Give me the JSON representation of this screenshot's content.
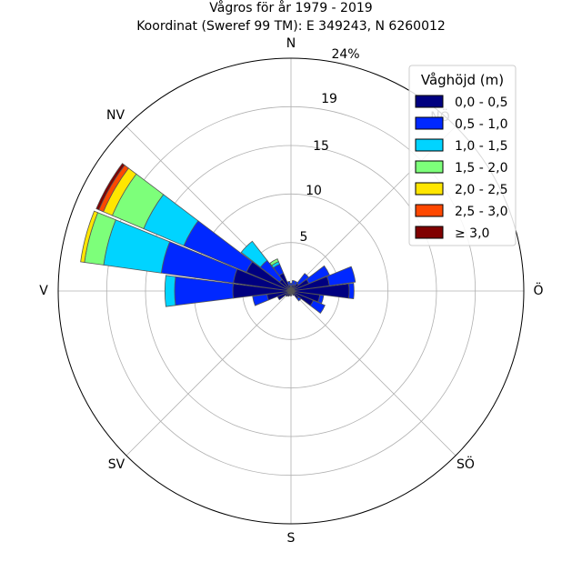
{
  "chart_data": {
    "type": "windrose",
    "title": "Vågros för år 1979 - 2019",
    "subtitle": "Koordinat (Sweref 99 TM): E 349243, N 6260012",
    "direction_labels": [
      "N",
      "NÖ",
      "Ö",
      "SÖ",
      "S",
      "SV",
      "V",
      "NV"
    ],
    "radial_ticks": [
      5,
      10,
      15,
      19
    ],
    "radial_max": 24,
    "radial_max_label": "24%",
    "sector_width_deg": 15,
    "legend": {
      "title": "Våghöjd (m)",
      "placement": "upper-right",
      "classes": [
        {
          "label": "0,0 - 0,5",
          "color": "#000080"
        },
        {
          "label": "0,5 - 1,0",
          "color": "#0028ff"
        },
        {
          "label": "1,0 - 1,5",
          "color": "#00d4ff"
        },
        {
          "label": "1,5 - 2,0",
          "color": "#7dff7a"
        },
        {
          "label": "2,0 - 2,5",
          "color": "#ffe600"
        },
        {
          "label": "2,5 - 3,0",
          "color": "#ff4800"
        },
        {
          "label": "≥ 3,0",
          "color": "#800000"
        }
      ]
    },
    "sectors": [
      {
        "direction_deg": 0,
        "values": [
          0.5,
          0.3,
          0,
          0,
          0,
          0,
          0
        ]
      },
      {
        "direction_deg": 15,
        "values": [
          0.6,
          0.5,
          0,
          0,
          0,
          0,
          0
        ]
      },
      {
        "direction_deg": 30,
        "values": [
          0.7,
          0.4,
          0,
          0,
          0,
          0,
          0
        ]
      },
      {
        "direction_deg": 45,
        "values": [
          1.0,
          1.3,
          0,
          0,
          0,
          0,
          0
        ]
      },
      {
        "direction_deg": 60,
        "values": [
          2.0,
          2.3,
          0,
          0,
          0,
          0,
          0
        ]
      },
      {
        "direction_deg": 75,
        "values": [
          4.0,
          2.7,
          0,
          0,
          0,
          0,
          0
        ]
      },
      {
        "direction_deg": 90,
        "values": [
          6.0,
          0.5,
          0,
          0,
          0,
          0,
          0
        ]
      },
      {
        "direction_deg": 105,
        "values": [
          3.0,
          0.4,
          0,
          0,
          0,
          0,
          0
        ]
      },
      {
        "direction_deg": 120,
        "values": [
          2.5,
          1.3,
          0,
          0,
          0,
          0,
          0
        ]
      },
      {
        "direction_deg": 135,
        "values": [
          1.0,
          0.3,
          0,
          0,
          0,
          0,
          0
        ]
      },
      {
        "direction_deg": 150,
        "values": [
          0.5,
          0,
          0,
          0,
          0,
          0,
          0
        ]
      },
      {
        "direction_deg": 165,
        "values": [
          0.3,
          0,
          0,
          0,
          0,
          0,
          0
        ]
      },
      {
        "direction_deg": 180,
        "values": [
          0.5,
          0,
          0,
          0,
          0,
          0,
          0
        ]
      },
      {
        "direction_deg": 195,
        "values": [
          0.5,
          0,
          0,
          0,
          0,
          0,
          0
        ]
      },
      {
        "direction_deg": 210,
        "values": [
          0.6,
          0,
          0,
          0,
          0,
          0,
          0
        ]
      },
      {
        "direction_deg": 225,
        "values": [
          0.7,
          0,
          0,
          0,
          0,
          0,
          0
        ]
      },
      {
        "direction_deg": 240,
        "values": [
          1.5,
          0,
          0,
          0,
          0,
          0,
          0
        ]
      },
      {
        "direction_deg": 255,
        "values": [
          2.5,
          1.5,
          0,
          0,
          0,
          0,
          0
        ]
      },
      {
        "direction_deg": 270,
        "values": [
          6.0,
          6.0,
          1.0,
          0,
          0,
          0,
          0
        ]
      },
      {
        "direction_deg": 285,
        "values": [
          6.0,
          7.5,
          6.0,
          2.0,
          0.4,
          0,
          0
        ]
      },
      {
        "direction_deg": 300,
        "values": [
          5.0,
          7.0,
          4.5,
          3.5,
          1.0,
          0.5,
          0.3
        ]
      },
      {
        "direction_deg": 315,
        "values": [
          1.5,
          2.5,
          2.5,
          0,
          0,
          0,
          0
        ]
      },
      {
        "direction_deg": 330,
        "values": [
          2.0,
          1.0,
          0.3,
          0.3,
          0,
          0,
          0
        ]
      },
      {
        "direction_deg": 345,
        "values": [
          0.6,
          0.4,
          0,
          0,
          0,
          0,
          0
        ]
      }
    ]
  }
}
